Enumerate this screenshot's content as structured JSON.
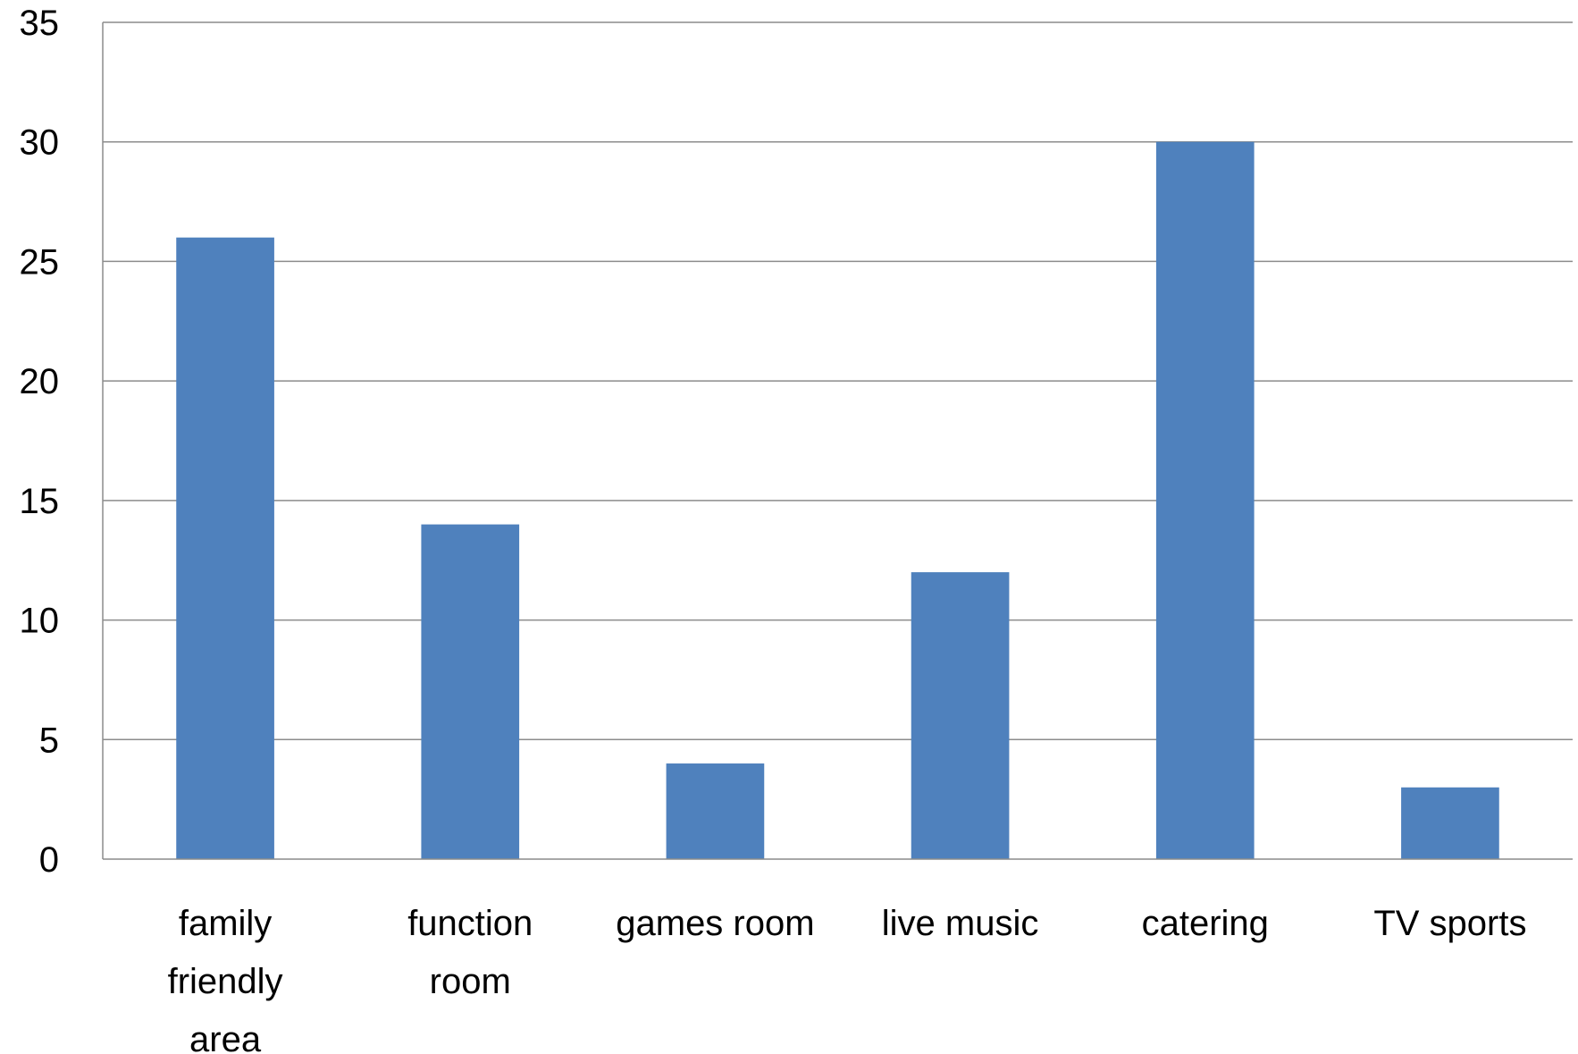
{
  "chart_data": {
    "type": "bar",
    "title": "",
    "xlabel": "",
    "ylabel": "",
    "categories": [
      "family friendly area",
      "function room",
      "games room",
      "live music",
      "catering",
      "TV sports"
    ],
    "category_label_lines": [
      [
        "family",
        "friendly",
        "area"
      ],
      [
        "function",
        "room"
      ],
      [
        "games room"
      ],
      [
        "live music"
      ],
      [
        "catering"
      ],
      [
        "TV sports"
      ]
    ],
    "values": [
      26,
      14,
      4,
      12,
      30,
      3
    ],
    "ylim": [
      0,
      35
    ],
    "yticks": [
      0,
      5,
      10,
      15,
      20,
      25,
      30,
      35
    ],
    "grid": true,
    "legend": "none",
    "colors": {
      "bar": "#4F81BD",
      "grid": "#8C8C8C",
      "axis": "#8C8C8C"
    }
  }
}
